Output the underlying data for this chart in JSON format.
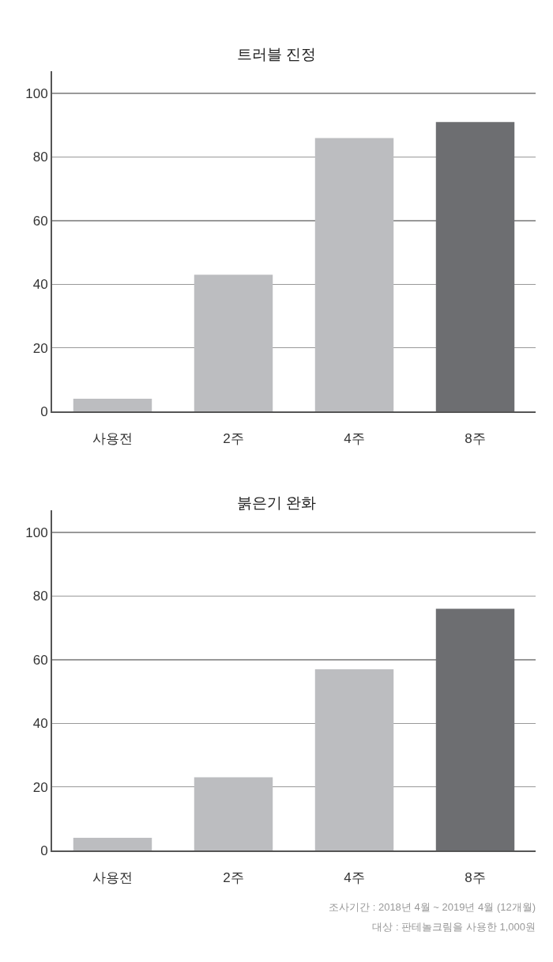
{
  "chart_data": [
    {
      "type": "bar",
      "title": "트러블 진정",
      "categories": [
        "사용전",
        "2주",
        "4주",
        "8주"
      ],
      "values": [
        4,
        43,
        86,
        91
      ],
      "colors": [
        "#bcbdc0",
        "#bcbdc0",
        "#bcbdc0",
        "#6d6e71"
      ],
      "ylim": [
        0,
        107
      ],
      "yticks": [
        0,
        20,
        40,
        60,
        80,
        100
      ],
      "grid": "y"
    },
    {
      "type": "bar",
      "title": "붉은기 완화",
      "categories": [
        "사용전",
        "2주",
        "4주",
        "8주"
      ],
      "values": [
        4,
        23,
        57,
        76
      ],
      "colors": [
        "#bcbdc0",
        "#bcbdc0",
        "#bcbdc0",
        "#6d6e71"
      ],
      "ylim": [
        0,
        107
      ],
      "yticks": [
        0,
        20,
        40,
        60,
        80,
        100
      ],
      "grid": "y",
      "annotations": [
        "조사기간 : 2018년 4월 ~ 2019년 4월 (12개월)",
        "대상 : 판테놀크림을 사용한 1,000원"
      ]
    }
  ]
}
